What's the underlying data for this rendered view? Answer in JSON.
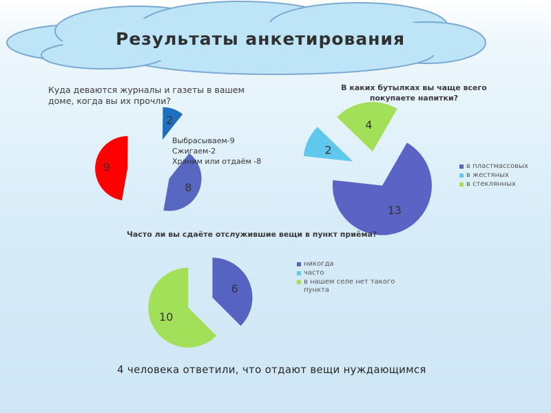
{
  "title": "Результаты анкетирования",
  "footer": "4 человека ответили, что отдают вещи нуждающимся",
  "chart_data": [
    {
      "type": "pie",
      "title": "Куда деваются журналы и газеты в вашем доме, когда вы их прочли?",
      "legend": [
        "Выбрасываем-9",
        "Сжигаем-2",
        "Храним или отдаём -8"
      ],
      "slices": [
        {
          "label": "Выбрасываем",
          "value": 9,
          "color": "#ff0000"
        },
        {
          "label": "Сжигаем",
          "value": 2,
          "color": "#1e6fc0"
        },
        {
          "label": "Храним или отдаём",
          "value": 8,
          "color": "#5867c2"
        }
      ]
    },
    {
      "type": "pie",
      "title": "В каких бутылках вы чаще всего покупаете напитки?",
      "legend_position": "right",
      "slices": [
        {
          "label": "в пластмассовых",
          "value": 13,
          "color": "#5b64c4"
        },
        {
          "label": "в жестяных",
          "value": 2,
          "color": "#60c8ec"
        },
        {
          "label": "в стеклянных",
          "value": 4,
          "color": "#a3e05a"
        }
      ]
    },
    {
      "type": "pie",
      "title": "Часто ли вы сдаёте отслужившие вещи в пункт приёма?",
      "legend_position": "right",
      "slices": [
        {
          "label": "никогда",
          "value": 6,
          "color": "#5763c2"
        },
        {
          "label": "часто",
          "value": 0,
          "color": "#60c8ec"
        },
        {
          "label": "в нашем селе нет такого пункта",
          "value": 10,
          "color": "#a3e05a"
        }
      ]
    }
  ]
}
